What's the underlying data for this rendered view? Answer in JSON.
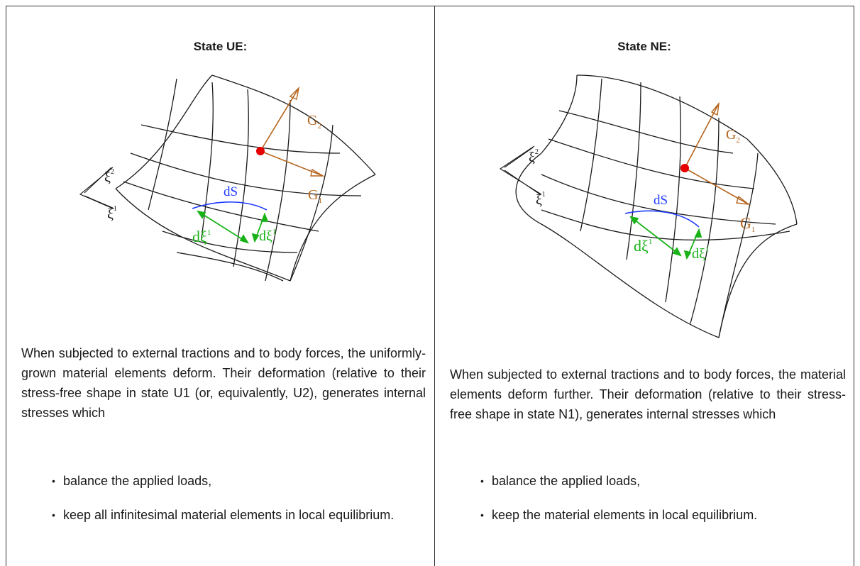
{
  "left": {
    "title": "State UE:",
    "figure": {
      "label_G2": "G",
      "label_G2_sub": "2",
      "label_G1": "G",
      "label_G1_sub": "1",
      "label_dS": "dS",
      "label_dxi_a": "dξ",
      "label_dxi_a_sup": "1",
      "label_dxi_b": "dξ",
      "label_dxi_b_sup": "1",
      "label_xi2": "ξ",
      "label_xi2_sup": "2",
      "label_xi1": "ξ",
      "label_xi1_sup": "1"
    },
    "paragraph": "When subjected to external tractions and to body forces, the uniformly-grown material elements deform. Their deformation (relative to their stress-free shape in state U1 (or, equivalently, U2), generates internal stresses which",
    "bullets": [
      "balance the applied loads,",
      "keep all infinitesimal material elements in local equilibrium."
    ]
  },
  "right": {
    "title": "State NE:",
    "figure": {
      "label_G2": "G",
      "label_G2_sub": "2",
      "label_G1": "G",
      "label_G1_sub": "1",
      "label_dS": "dS",
      "label_dxi_a": "dξ",
      "label_dxi_a_sup": "1",
      "label_dxi_b": "dξ",
      "label_dxi_b_sup": "1",
      "label_xi2": "ξ",
      "label_xi2_sup": "2",
      "label_xi1": "ξ",
      "label_xi1_sup": "1"
    },
    "paragraph": "When subjected to external tractions and to body forces, the material elements deform further. Their deformation (relative to their stress-free shape in state N1), generates internal stresses which",
    "bullets": [
      "balance the applied loads,",
      "keep the material elements in local equilibrium."
    ]
  },
  "colors": {
    "grid": "#1a1a1a",
    "vector": "#b5651d",
    "point": "#e60000",
    "arc": "#1f3cff",
    "increment": "#19b319"
  }
}
